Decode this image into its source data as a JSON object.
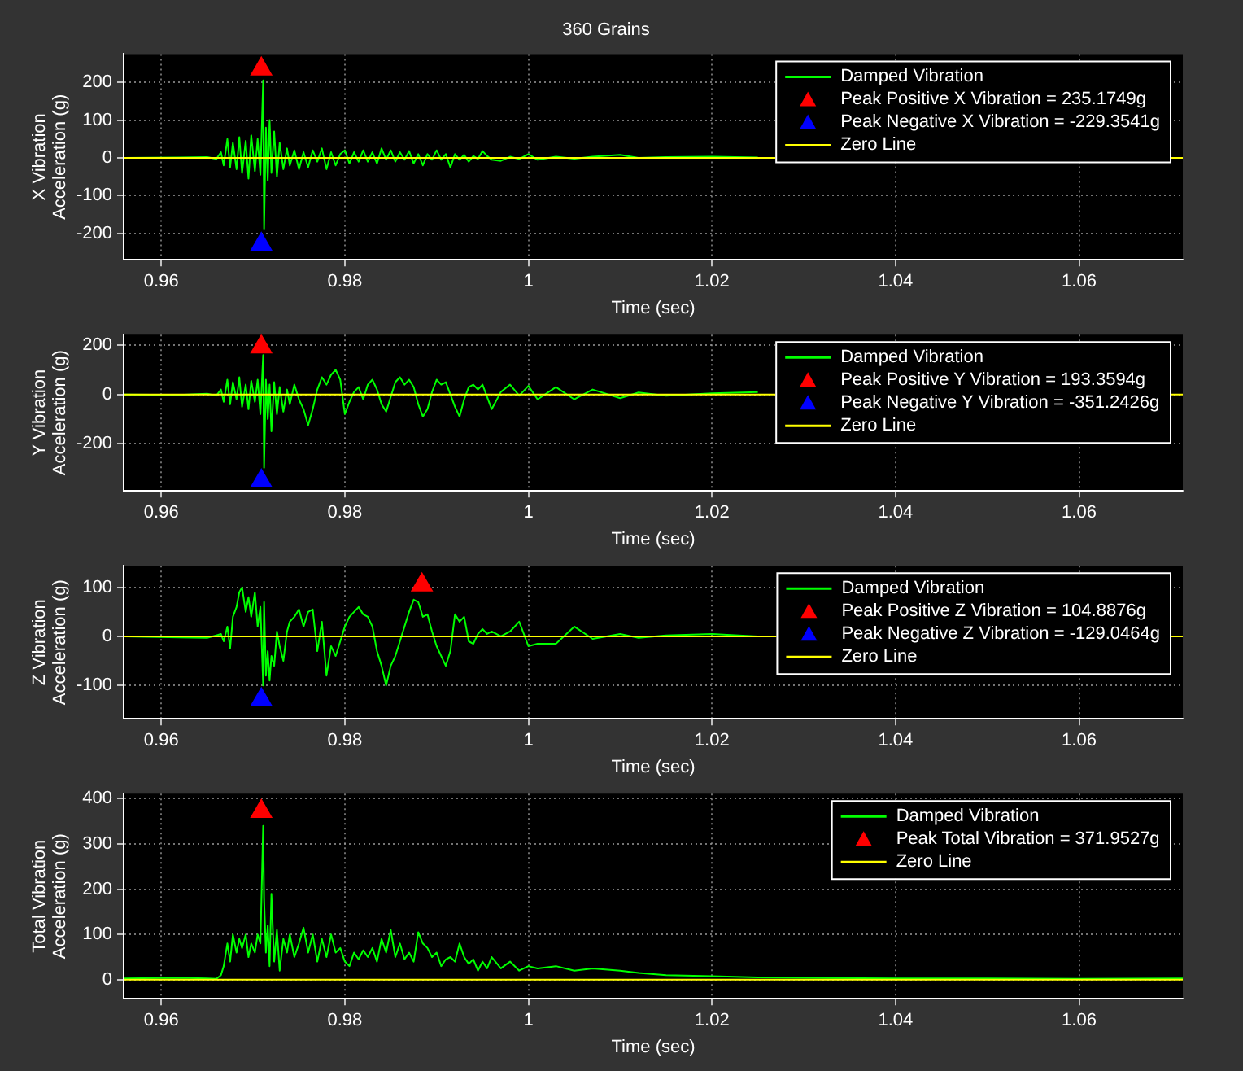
{
  "chart_data": [
    {
      "type": "line",
      "title": "360 Grains",
      "xlabel": "Time (sec)",
      "ylabel": "X Vibration\nAcceleration (g)",
      "xlim": [
        0.9559,
        1.0713
      ],
      "ylim": [
        -270,
        275
      ],
      "xticks": [
        0.96,
        0.98,
        1,
        1.02,
        1.04,
        1.06
      ],
      "yticks": [
        -200,
        -100,
        0,
        100,
        200
      ],
      "grid": true,
      "legend": "top right",
      "series": [
        {
          "name": "Damped Vibration",
          "type": "line",
          "color": "#00ff00",
          "marker": "none",
          "x": [
            0.9559,
            0.962,
            0.965,
            0.966,
            0.9665,
            0.9668,
            0.9672,
            0.9675,
            0.9678,
            0.9682,
            0.9685,
            0.9688,
            0.9692,
            0.9695,
            0.9698,
            0.9702,
            0.9705,
            0.9708,
            0.9711,
            0.9712,
            0.9714,
            0.9716,
            0.9718,
            0.972,
            0.9723,
            0.9726,
            0.9729,
            0.9733,
            0.9737,
            0.974,
            0.9745,
            0.975,
            0.9755,
            0.976,
            0.9765,
            0.977,
            0.9775,
            0.978,
            0.9785,
            0.979,
            0.9795,
            0.98,
            0.9805,
            0.981,
            0.9815,
            0.982,
            0.9825,
            0.983,
            0.9835,
            0.984,
            0.9845,
            0.985,
            0.9855,
            0.986,
            0.9865,
            0.987,
            0.9875,
            0.988,
            0.9885,
            0.989,
            0.9895,
            0.99,
            0.9905,
            0.991,
            0.9915,
            0.992,
            0.9925,
            0.993,
            0.9935,
            0.994,
            0.9945,
            0.995,
            0.9955,
            0.996,
            0.997,
            0.998,
            0.999,
            1,
            1.001,
            1.003,
            1.005,
            1.007,
            1.01,
            1.012,
            1.015,
            1.02,
            1.025
          ],
          "values": [
            0,
            1,
            2,
            -3,
            15,
            -20,
            50,
            -25,
            40,
            -30,
            55,
            -40,
            45,
            -55,
            60,
            -35,
            50,
            -45,
            205,
            -190,
            80,
            -60,
            100,
            -40,
            70,
            -50,
            40,
            -30,
            25,
            -20,
            20,
            -30,
            15,
            -25,
            20,
            -10,
            25,
            -30,
            15,
            -20,
            10,
            20,
            -15,
            15,
            -10,
            20,
            -10,
            15,
            -15,
            25,
            -5,
            20,
            -10,
            15,
            -5,
            18,
            -15,
            10,
            -20,
            10,
            -5,
            20,
            -5,
            10,
            -25,
            10,
            -5,
            8,
            -10,
            5,
            -3,
            18,
            5,
            -5,
            -8,
            3,
            -3,
            10,
            -5,
            3,
            -2,
            3,
            8,
            0,
            2,
            3,
            1
          ]
        },
        {
          "name": "Peak Positive X Vibration = 235.1749g",
          "type": "scatter",
          "color": "#ff0000",
          "marker": "triangle",
          "x": [
            0.9709
          ],
          "values": [
            235.1749
          ]
        },
        {
          "name": "Peak Negative X Vibration = -229.3541g",
          "type": "scatter",
          "color": "#0000ff",
          "marker": "triangle",
          "x": [
            0.9709
          ],
          "values": [
            -229.3541
          ]
        },
        {
          "name": "Zero Line",
          "type": "line",
          "color": "#ffff00",
          "marker": "none",
          "x": [
            0.9559,
            1.0713
          ],
          "values": [
            0,
            0
          ]
        }
      ]
    },
    {
      "type": "line",
      "xlabel": "Time (sec)",
      "ylabel": "Y Vibration\nAcceleration (g)",
      "xlim": [
        0.9559,
        1.0713
      ],
      "ylim": [
        -392,
        243
      ],
      "xticks": [
        0.96,
        0.98,
        1,
        1.02,
        1.04,
        1.06
      ],
      "yticks": [
        -200,
        0,
        200
      ],
      "grid": true,
      "legend": "top right",
      "series": [
        {
          "name": "Damped Vibration",
          "type": "line",
          "color": "#00ff00",
          "marker": "none",
          "x": [
            0.9559,
            0.962,
            0.965,
            0.966,
            0.9665,
            0.9668,
            0.9672,
            0.9675,
            0.9678,
            0.9682,
            0.9685,
            0.9688,
            0.9692,
            0.9695,
            0.9698,
            0.9702,
            0.9705,
            0.9708,
            0.9711,
            0.9712,
            0.9714,
            0.9716,
            0.9718,
            0.972,
            0.9723,
            0.9726,
            0.9729,
            0.9733,
            0.9737,
            0.974,
            0.9745,
            0.975,
            0.9755,
            0.976,
            0.9765,
            0.977,
            0.9775,
            0.978,
            0.9785,
            0.979,
            0.9795,
            0.98,
            0.9805,
            0.981,
            0.9815,
            0.982,
            0.9825,
            0.983,
            0.9835,
            0.984,
            0.9845,
            0.985,
            0.9855,
            0.986,
            0.9865,
            0.987,
            0.9875,
            0.988,
            0.9885,
            0.989,
            0.9895,
            0.99,
            0.9905,
            0.991,
            0.9915,
            0.992,
            0.9925,
            0.993,
            0.9935,
            0.994,
            0.9945,
            0.995,
            0.9955,
            0.996,
            0.997,
            0.998,
            0.999,
            1,
            1.001,
            1.003,
            1.005,
            1.007,
            1.01,
            1.012,
            1.015,
            1.02,
            1.025
          ],
          "values": [
            0,
            -2,
            3,
            -5,
            20,
            -30,
            60,
            -40,
            50,
            -20,
            70,
            -50,
            40,
            -60,
            55,
            -30,
            60,
            -80,
            160,
            -298,
            60,
            -100,
            40,
            -150,
            50,
            -80,
            30,
            -70,
            20,
            -40,
            40,
            -20,
            -60,
            -125,
            -60,
            20,
            70,
            40,
            80,
            100,
            60,
            -80,
            -30,
            10,
            30,
            -20,
            40,
            60,
            20,
            -40,
            -70,
            -10,
            50,
            70,
            40,
            60,
            30,
            -40,
            -90,
            -60,
            10,
            60,
            40,
            50,
            0,
            -50,
            -90,
            -20,
            30,
            40,
            20,
            40,
            -10,
            -60,
            10,
            40,
            -5,
            35,
            -20,
            30,
            -20,
            20,
            -15,
            8,
            -5,
            5,
            10
          ]
        },
        {
          "name": "Peak Positive Y Vibration = 193.3594g",
          "type": "scatter",
          "color": "#ff0000",
          "marker": "triangle",
          "x": [
            0.9709
          ],
          "values": [
            193.3594
          ]
        },
        {
          "name": "Peak Negative Y Vibration = -351.2426g",
          "type": "scatter",
          "color": "#0000ff",
          "marker": "triangle",
          "x": [
            0.9709
          ],
          "values": [
            -351.2426
          ]
        },
        {
          "name": "Zero Line",
          "type": "line",
          "color": "#ffff00",
          "marker": "none",
          "x": [
            0.9559,
            1.0713
          ],
          "values": [
            0,
            0
          ]
        }
      ]
    },
    {
      "type": "line",
      "xlabel": "Time (sec)",
      "ylabel": "Z Vibration\nAcceleration (g)",
      "xlim": [
        0.9559,
        1.0713
      ],
      "ylim": [
        -168,
        144
      ],
      "xticks": [
        0.96,
        0.98,
        1,
        1.02,
        1.04,
        1.06
      ],
      "yticks": [
        -100,
        0,
        100
      ],
      "grid": true,
      "legend": "top right",
      "series": [
        {
          "name": "Damped Vibration",
          "type": "line",
          "color": "#00ff00",
          "marker": "none",
          "x": [
            0.9559,
            0.962,
            0.965,
            0.966,
            0.9665,
            0.9668,
            0.9672,
            0.9675,
            0.9678,
            0.9682,
            0.9685,
            0.9688,
            0.9692,
            0.9695,
            0.9698,
            0.9702,
            0.9705,
            0.9708,
            0.9711,
            0.9712,
            0.9714,
            0.9716,
            0.9718,
            0.972,
            0.9723,
            0.9726,
            0.9729,
            0.9733,
            0.9737,
            0.974,
            0.9745,
            0.975,
            0.9755,
            0.976,
            0.9765,
            0.977,
            0.9775,
            0.978,
            0.9785,
            0.979,
            0.9795,
            0.98,
            0.9805,
            0.981,
            0.9815,
            0.982,
            0.9825,
            0.983,
            0.9835,
            0.984,
            0.9845,
            0.985,
            0.9855,
            0.986,
            0.9865,
            0.987,
            0.9875,
            0.988,
            0.9885,
            0.989,
            0.9895,
            0.99,
            0.9905,
            0.991,
            0.9915,
            0.992,
            0.9925,
            0.993,
            0.9935,
            0.994,
            0.9945,
            0.995,
            0.9955,
            0.996,
            0.997,
            0.998,
            0.999,
            1,
            1.001,
            1.003,
            1.005,
            1.007,
            1.01,
            1.012,
            1.015,
            1.02,
            1.025
          ],
          "values": [
            0,
            -2,
            -3,
            2,
            5,
            -10,
            20,
            -25,
            40,
            60,
            90,
            100,
            50,
            80,
            40,
            90,
            20,
            60,
            -100,
            70,
            -80,
            -30,
            -90,
            -40,
            -60,
            10,
            -20,
            -50,
            10,
            30,
            40,
            55,
            20,
            50,
            55,
            -30,
            30,
            -80,
            -20,
            -40,
            -10,
            20,
            40,
            50,
            60,
            45,
            40,
            20,
            -30,
            -60,
            -100,
            -60,
            -40,
            -10,
            20,
            50,
            75,
            70,
            40,
            45,
            10,
            -20,
            -40,
            -60,
            -30,
            45,
            30,
            40,
            -10,
            -15,
            5,
            15,
            5,
            10,
            0,
            10,
            30,
            -20,
            -15,
            -15,
            20,
            -5,
            5,
            -3,
            2,
            5,
            0
          ]
        },
        {
          "name": "Peak Positive Z Vibration = 104.8876g",
          "type": "scatter",
          "color": "#ff0000",
          "marker": "triangle",
          "x": [
            0.9884
          ],
          "values": [
            104.8876
          ]
        },
        {
          "name": "Peak Negative Z Vibration = -129.0464g",
          "type": "scatter",
          "color": "#0000ff",
          "marker": "triangle",
          "x": [
            0.9709
          ],
          "values": [
            -129.0464
          ]
        },
        {
          "name": "Zero Line",
          "type": "line",
          "color": "#ffff00",
          "marker": "none",
          "x": [
            0.9559,
            1.0713
          ],
          "values": [
            0,
            0
          ]
        }
      ]
    },
    {
      "type": "line",
      "xlabel": "Time (sec)",
      "ylabel": "Total Vibration\nAcceleration (g)",
      "xlim": [
        0.9559,
        1.0713
      ],
      "ylim": [
        -42,
        411
      ],
      "xticks": [
        0.96,
        0.98,
        1,
        1.02,
        1.04,
        1.06
      ],
      "yticks": [
        0,
        100,
        200,
        300,
        400
      ],
      "grid": true,
      "legend": "top right",
      "series": [
        {
          "name": "Damped Vibration",
          "type": "line",
          "color": "#00ff00",
          "marker": "none",
          "x": [
            0.9559,
            0.962,
            0.965,
            0.966,
            0.9665,
            0.9668,
            0.9672,
            0.9675,
            0.9678,
            0.9682,
            0.9685,
            0.9688,
            0.9692,
            0.9695,
            0.9698,
            0.9702,
            0.9705,
            0.9708,
            0.9711,
            0.9712,
            0.9714,
            0.9716,
            0.9718,
            0.972,
            0.9723,
            0.9726,
            0.9729,
            0.9733,
            0.9737,
            0.974,
            0.9745,
            0.975,
            0.9755,
            0.976,
            0.9765,
            0.977,
            0.9775,
            0.978,
            0.9785,
            0.979,
            0.9795,
            0.98,
            0.9805,
            0.981,
            0.9815,
            0.982,
            0.9825,
            0.983,
            0.9835,
            0.984,
            0.9845,
            0.985,
            0.9855,
            0.986,
            0.9865,
            0.987,
            0.9875,
            0.988,
            0.9885,
            0.989,
            0.9895,
            0.99,
            0.9905,
            0.991,
            0.9915,
            0.992,
            0.9925,
            0.993,
            0.9935,
            0.994,
            0.9945,
            0.995,
            0.9955,
            0.996,
            0.997,
            0.998,
            0.999,
            1,
            1.001,
            1.003,
            1.005,
            1.007,
            1.01,
            1.012,
            1.015,
            1.02,
            1.025,
            1.03,
            1.04,
            1.05,
            1.06,
            1.0713
          ],
          "values": [
            3,
            4,
            3,
            2,
            10,
            30,
            80,
            40,
            100,
            60,
            90,
            70,
            100,
            50,
            80,
            60,
            100,
            80,
            340,
            180,
            60,
            120,
            30,
            190,
            40,
            110,
            20,
            90,
            60,
            100,
            50,
            80,
            115,
            60,
            100,
            40,
            90,
            50,
            100,
            60,
            70,
            40,
            30,
            60,
            45,
            65,
            50,
            70,
            40,
            90,
            60,
            110,
            50,
            80,
            45,
            60,
            40,
            105,
            80,
            70,
            50,
            60,
            30,
            45,
            50,
            40,
            80,
            50,
            35,
            45,
            20,
            40,
            25,
            50,
            25,
            40,
            20,
            30,
            25,
            30,
            20,
            25,
            20,
            15,
            10,
            8,
            5,
            4,
            3,
            3,
            2,
            3
          ]
        },
        {
          "name": "Peak Total Vibration = 371.9527g",
          "type": "scatter",
          "color": "#ff0000",
          "marker": "triangle",
          "x": [
            0.9709
          ],
          "values": [
            371.9527
          ]
        },
        {
          "name": "Zero Line",
          "type": "line",
          "color": "#ffff00",
          "marker": "none",
          "x": [
            0.9559,
            1.0713
          ],
          "values": [
            0,
            0
          ]
        }
      ]
    }
  ]
}
